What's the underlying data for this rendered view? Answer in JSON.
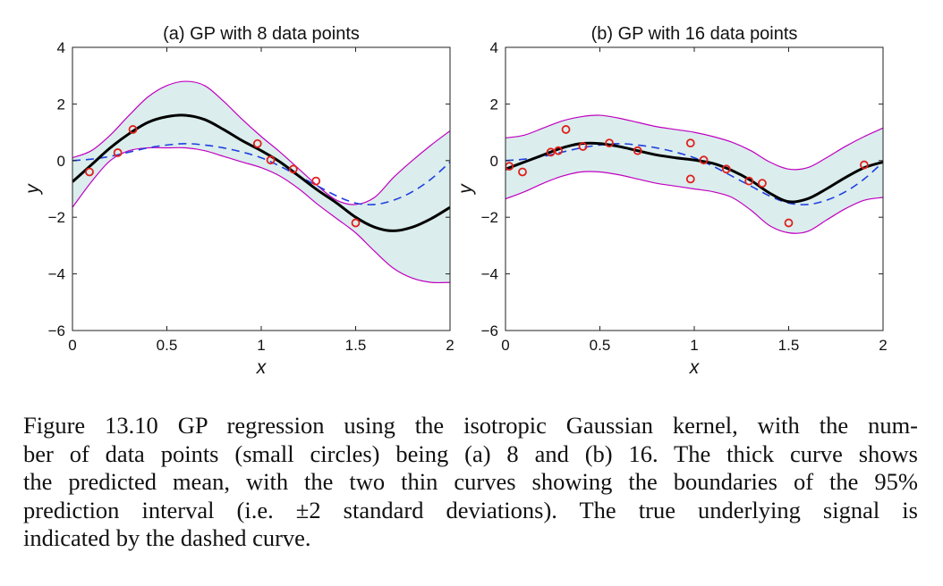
{
  "colors": {
    "band_fill": "#dbeded",
    "band_edge": "#c000c0",
    "mean": "#000000",
    "truth": "#1f3fe0",
    "points": "#e0201c",
    "axes": "#222222"
  },
  "chart_data": [
    {
      "type": "line",
      "title": "(a)  GP with 8 data points",
      "xlabel": "x",
      "ylabel": "y",
      "xlim": [
        0,
        2
      ],
      "ylim": [
        -6,
        4
      ],
      "xticks": [
        0,
        0.5,
        1,
        1.5,
        2
      ],
      "xtick_labels": [
        "0",
        "0.5",
        "1",
        "1.5",
        "2"
      ],
      "yticks": [
        -6,
        -4,
        -2,
        0,
        2,
        4
      ],
      "ytick_labels": [
        "−6",
        "−4",
        "−2",
        "0",
        "2",
        "4"
      ],
      "grid": false,
      "x": [
        0,
        0.1,
        0.2,
        0.3,
        0.4,
        0.5,
        0.6,
        0.7,
        0.8,
        0.9,
        1.0,
        1.1,
        1.2,
        1.3,
        1.4,
        1.5,
        1.6,
        1.7,
        1.8,
        1.9,
        2.0
      ],
      "series": [
        {
          "role": "mean",
          "style": "thick solid",
          "values": [
            -0.75,
            -0.15,
            0.45,
            0.95,
            1.35,
            1.55,
            1.6,
            1.45,
            1.1,
            0.7,
            0.35,
            -0.05,
            -0.55,
            -1.05,
            -1.5,
            -2.0,
            -2.35,
            -2.48,
            -2.35,
            -2.05,
            -1.65
          ]
        },
        {
          "role": "upper_95",
          "style": "thin",
          "values": [
            0.1,
            0.35,
            0.9,
            1.6,
            2.25,
            2.65,
            2.8,
            2.65,
            2.1,
            1.45,
            0.85,
            0.3,
            -0.3,
            -0.9,
            -1.4,
            -1.55,
            -1.3,
            -0.6,
            0.0,
            0.55,
            1.05
          ]
        },
        {
          "role": "lower_95",
          "style": "thin",
          "values": [
            -1.65,
            -0.75,
            0.0,
            0.35,
            0.45,
            0.45,
            0.45,
            0.35,
            0.15,
            -0.05,
            -0.25,
            -0.55,
            -1.0,
            -1.55,
            -2.05,
            -2.55,
            -3.2,
            -3.8,
            -4.15,
            -4.3,
            -4.3
          ]
        },
        {
          "role": "truth",
          "style": "dashed",
          "values": [
            0.0,
            0.05,
            0.15,
            0.3,
            0.45,
            0.55,
            0.6,
            0.55,
            0.45,
            0.3,
            0.1,
            -0.2,
            -0.55,
            -0.9,
            -1.25,
            -1.5,
            -1.55,
            -1.4,
            -1.1,
            -0.65,
            -0.05
          ]
        }
      ],
      "points": {
        "x": [
          0.09,
          0.24,
          0.32,
          0.98,
          1.05,
          1.17,
          1.29,
          1.5
        ],
        "y": [
          -0.4,
          0.28,
          1.1,
          0.6,
          0.02,
          -0.3,
          -0.72,
          -2.2
        ]
      }
    },
    {
      "type": "line",
      "title": "(b)  GP with 16 data points",
      "xlabel": "x",
      "ylabel": "y",
      "xlim": [
        0,
        2
      ],
      "ylim": [
        -6,
        4
      ],
      "xticks": [
        0,
        0.5,
        1,
        1.5,
        2
      ],
      "xtick_labels": [
        "0",
        "0.5",
        "1",
        "1.5",
        "2"
      ],
      "yticks": [
        -6,
        -4,
        -2,
        0,
        2,
        4
      ],
      "ytick_labels": [
        "−6",
        "−4",
        "−2",
        "0",
        "2",
        "4"
      ],
      "grid": false,
      "x": [
        0,
        0.1,
        0.2,
        0.3,
        0.4,
        0.5,
        0.6,
        0.7,
        0.8,
        0.9,
        1.0,
        1.1,
        1.2,
        1.3,
        1.4,
        1.5,
        1.6,
        1.7,
        1.8,
        1.9,
        2.0
      ],
      "series": [
        {
          "role": "mean",
          "style": "thick solid",
          "values": [
            -0.3,
            -0.05,
            0.2,
            0.45,
            0.6,
            0.6,
            0.5,
            0.35,
            0.2,
            0.1,
            0.02,
            -0.1,
            -0.35,
            -0.7,
            -1.15,
            -1.45,
            -1.35,
            -1.0,
            -0.6,
            -0.25,
            -0.05
          ]
        },
        {
          "role": "upper_95",
          "style": "thin",
          "values": [
            0.8,
            0.9,
            1.15,
            1.4,
            1.55,
            1.6,
            1.5,
            1.35,
            1.2,
            1.1,
            1.0,
            0.85,
            0.65,
            0.35,
            -0.05,
            -0.3,
            -0.25,
            0.1,
            0.5,
            0.85,
            1.15
          ]
        },
        {
          "role": "lower_95",
          "style": "thin",
          "values": [
            -1.35,
            -1.1,
            -0.8,
            -0.55,
            -0.4,
            -0.4,
            -0.5,
            -0.65,
            -0.8,
            -0.9,
            -1.0,
            -1.1,
            -1.3,
            -1.75,
            -2.3,
            -2.55,
            -2.5,
            -2.1,
            -1.7,
            -1.4,
            -1.3
          ]
        },
        {
          "role": "truth",
          "style": "dashed",
          "values": [
            0.0,
            0.05,
            0.15,
            0.3,
            0.45,
            0.55,
            0.6,
            0.55,
            0.45,
            0.3,
            0.1,
            -0.2,
            -0.55,
            -0.9,
            -1.25,
            -1.5,
            -1.55,
            -1.4,
            -1.1,
            -0.65,
            -0.05
          ]
        }
      ],
      "points": {
        "x": [
          0.02,
          0.09,
          0.24,
          0.28,
          0.32,
          0.41,
          0.55,
          0.7,
          0.98,
          0.98,
          1.05,
          1.17,
          1.29,
          1.36,
          1.5,
          1.9
        ],
        "y": [
          -0.2,
          -0.4,
          0.3,
          0.35,
          1.1,
          0.5,
          0.62,
          0.35,
          -0.65,
          0.62,
          0.02,
          -0.3,
          -0.72,
          -0.8,
          -2.2,
          -0.15
        ]
      }
    }
  ],
  "caption": {
    "lines": [
      "Figure 13.10 GP regression using the isotropic Gaussian kernel, with the num-",
      "ber of data points (small circles) being (a) 8 and (b) 16. The thick curve shows",
      "the predicted mean, with the two thin curves showing the boundaries of the 95%",
      "prediction interval (i.e. ±2 standard deviations). The true underlying signal is",
      "indicated by the dashed curve."
    ]
  }
}
